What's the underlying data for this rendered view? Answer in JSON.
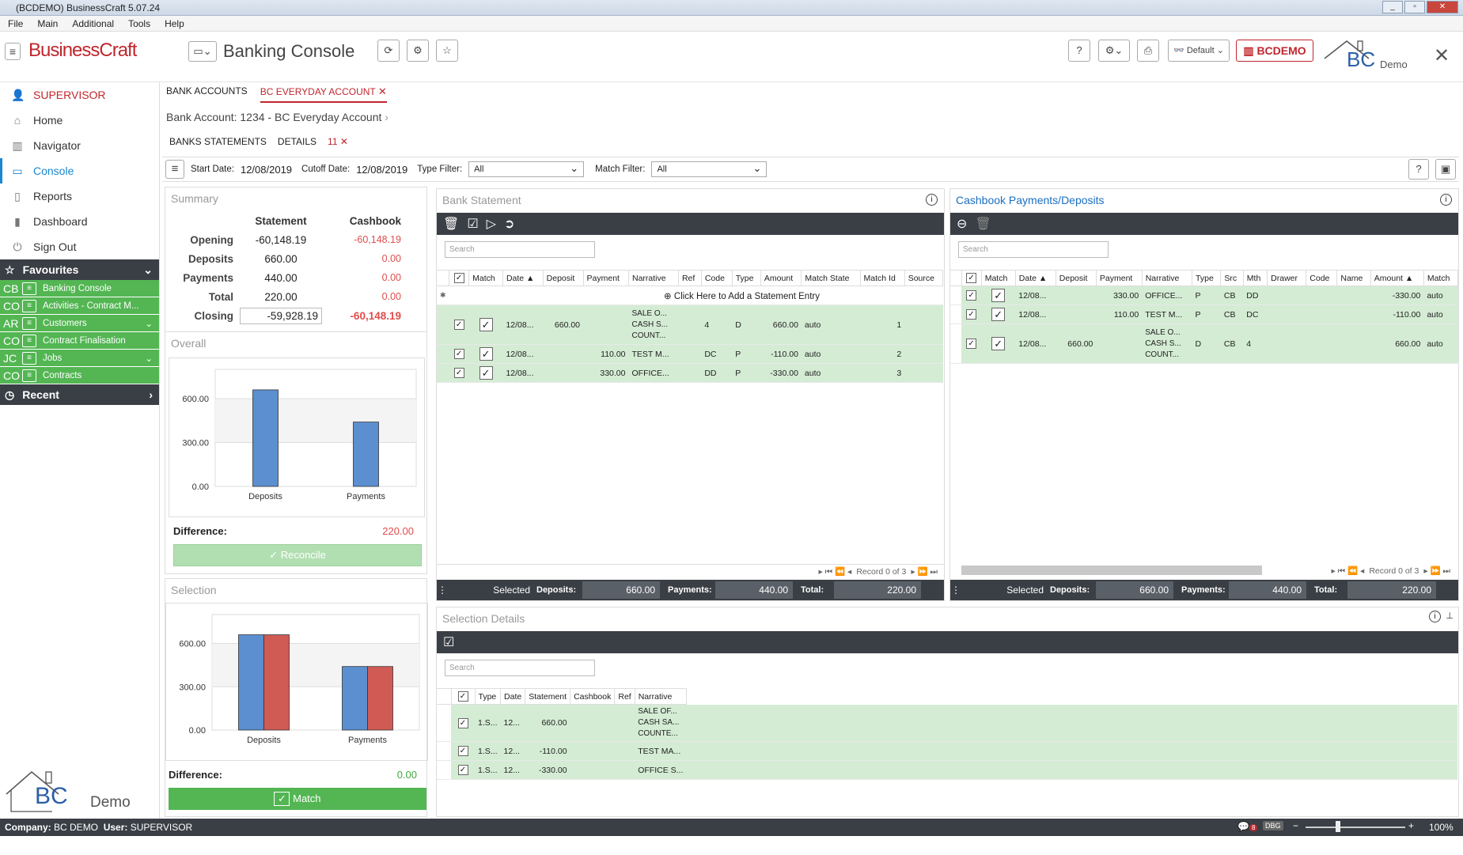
{
  "window": {
    "title": "(BCDEMO) BusinessCraft  5.07.24"
  },
  "menu": [
    "File",
    "Main",
    "Additional",
    "Tools",
    "Help"
  ],
  "header": {
    "brand": "BusinessCraft",
    "page_title": "Banking Console",
    "profile": "Default",
    "company_badge": "BCDEMO",
    "logo_text": "BC",
    "logo_sub": "Demo"
  },
  "sidebar": {
    "user": "SUPERVISOR",
    "items": [
      "Home",
      "Navigator",
      "Console",
      "Reports",
      "Dashboard",
      "Sign Out"
    ],
    "favourites_label": "Favourites",
    "favourites": [
      {
        "code": "CB",
        "label": "Banking Console"
      },
      {
        "code": "CO",
        "label": "Activities - Contract M..."
      },
      {
        "code": "AR",
        "label": "Customers"
      },
      {
        "code": "CO",
        "label": "Contract Finalisation"
      },
      {
        "code": "JC",
        "label": "Jobs"
      },
      {
        "code": "CO",
        "label": "Contracts"
      }
    ],
    "recent_label": "Recent",
    "logo_text": "BC",
    "logo_sub": "Demo"
  },
  "tabs": [
    "BANK ACCOUNTS",
    "BC EVERYDAY ACCOUNT"
  ],
  "breadcrumb": "Bank Account: 1234 - BC Everyday Account",
  "subtabs": [
    "BANKS STATEMENTS",
    "DETAILS",
    "11"
  ],
  "filter": {
    "start_label": "Start Date:",
    "start": "12/08/2019",
    "cutoff_label": "Cutoff Date:",
    "cutoff": "12/08/2019",
    "type_label": "Type Filter:",
    "type": "All",
    "match_label": "Match Filter:",
    "match": "All"
  },
  "summary": {
    "title": "Summary",
    "col_statement": "Statement",
    "col_cashbook": "Cashbook",
    "rows": [
      {
        "label": "Opening",
        "statement": "-60,148.19",
        "cashbook": "-60,148.19"
      },
      {
        "label": "Deposits",
        "statement": "660.00",
        "cashbook": "0.00"
      },
      {
        "label": "Payments",
        "statement": "440.00",
        "cashbook": "0.00"
      },
      {
        "label": "Total",
        "statement": "220.00",
        "cashbook": "0.00"
      },
      {
        "label": "Closing",
        "statement": "-59,928.19",
        "cashbook": "-60,148.19"
      }
    ]
  },
  "overall": {
    "title": "Overall",
    "difference_label": "Difference:",
    "difference": "220.00",
    "reconcile_label": "Reconcile"
  },
  "selection": {
    "title": "Selection",
    "difference_label": "Difference:",
    "difference": "0.00",
    "match_label": "Match"
  },
  "chart_data": [
    {
      "type": "bar",
      "title": "Overall",
      "categories": [
        "Deposits",
        "Payments"
      ],
      "series": [
        {
          "values": [
            660,
            440
          ]
        }
      ],
      "ylim": [
        0,
        800
      ],
      "yticks": [
        "0.00",
        "300.00",
        "600.00"
      ],
      "colors": [
        "#5b8fd0"
      ]
    },
    {
      "type": "bar",
      "title": "Selection",
      "categories": [
        "Deposits",
        "Payments"
      ],
      "series": [
        {
          "values": [
            660,
            440
          ]
        },
        {
          "values": [
            660,
            440
          ]
        }
      ],
      "ylim": [
        0,
        800
      ],
      "yticks": [
        "0.00",
        "300.00",
        "600.00"
      ],
      "colors": [
        "#5b8fd0",
        "#d05b55"
      ]
    }
  ],
  "bank_statement": {
    "title": "Bank Statement",
    "search": "Search",
    "add_entry": "Click Here to Add a Statement Entry",
    "columns": [
      "Match",
      "Date",
      "Deposit",
      "Payment",
      "Narrative",
      "Ref",
      "Code",
      "Type",
      "Amount",
      "Match State",
      "Match Id",
      "Source"
    ],
    "rows": [
      {
        "date": "12/08...",
        "deposit": "660.00",
        "payment": "",
        "narrative": "SALE O...\nCASH S...\nCOUNT...",
        "ref": "",
        "code": "4",
        "type": "D",
        "amount": "660.00",
        "state": "auto",
        "id": "1",
        "source": ""
      },
      {
        "date": "12/08...",
        "deposit": "",
        "payment": "110.00",
        "narrative": "TEST M...",
        "ref": "",
        "code": "DC",
        "type": "P",
        "amount": "-110.00",
        "state": "auto",
        "id": "2",
        "source": ""
      },
      {
        "date": "12/08...",
        "deposit": "",
        "payment": "330.00",
        "narrative": "OFFICE...",
        "ref": "",
        "code": "DD",
        "type": "P",
        "amount": "-330.00",
        "state": "auto",
        "id": "3",
        "source": ""
      }
    ],
    "record": "Record 0 of 3",
    "footer": {
      "selected": "Selected",
      "deposits_label": "Deposits:",
      "deposits": "660.00",
      "payments_label": "Payments:",
      "payments": "440.00",
      "total_label": "Total:",
      "total": "220.00"
    }
  },
  "cashbook": {
    "title": "Cashbook Payments/Deposits",
    "search": "Search",
    "columns": [
      "Match",
      "Date",
      "Deposit",
      "Payment",
      "Narrative",
      "Type",
      "Src",
      "Mth",
      "Drawer",
      "Code",
      "Name",
      "Amount",
      "Match"
    ],
    "rows": [
      {
        "date": "12/08...",
        "deposit": "",
        "payment": "330.00",
        "narrative": "OFFICE...",
        "type": "P",
        "src": "CB",
        "mth": "DD",
        "amount": "-330.00",
        "match": "auto"
      },
      {
        "date": "12/08...",
        "deposit": "",
        "payment": "110.00",
        "narrative": "TEST M...",
        "type": "P",
        "src": "CB",
        "mth": "DC",
        "amount": "-110.00",
        "match": "auto"
      },
      {
        "date": "12/08...",
        "deposit": "660.00",
        "payment": "",
        "narrative": "SALE O...\nCASH S...\nCOUNT...",
        "type": "D",
        "src": "CB",
        "mth": "4",
        "amount": "660.00",
        "match": "auto"
      }
    ],
    "record": "Record 0 of 3",
    "footer": {
      "selected": "Selected",
      "deposits_label": "Deposits:",
      "deposits": "660.00",
      "payments_label": "Payments:",
      "payments": "440.00",
      "total_label": "Total:",
      "total": "220.00"
    }
  },
  "details": {
    "title": "Selection Details",
    "search": "Search",
    "columns": [
      "Type",
      "Date",
      "Statement",
      "Cashbook",
      "Ref",
      "Narrative"
    ],
    "rows": [
      {
        "type": "1.S...",
        "date": "12...",
        "statement": "660.00",
        "narrative": "SALE OF...\nCASH SA...\nCOUNTE..."
      },
      {
        "type": "1.S...",
        "date": "12...",
        "statement": "-110.00",
        "narrative": "TEST MA..."
      },
      {
        "type": "1.S...",
        "date": "12...",
        "statement": "-330.00",
        "narrative": "OFFICE S..."
      }
    ]
  },
  "status": {
    "company_label": "Company:",
    "company": "BC DEMO",
    "user_label": "User:",
    "user": "SUPERVISOR",
    "msg_count": "8",
    "dbg": "DBG",
    "zoom": "100%"
  }
}
